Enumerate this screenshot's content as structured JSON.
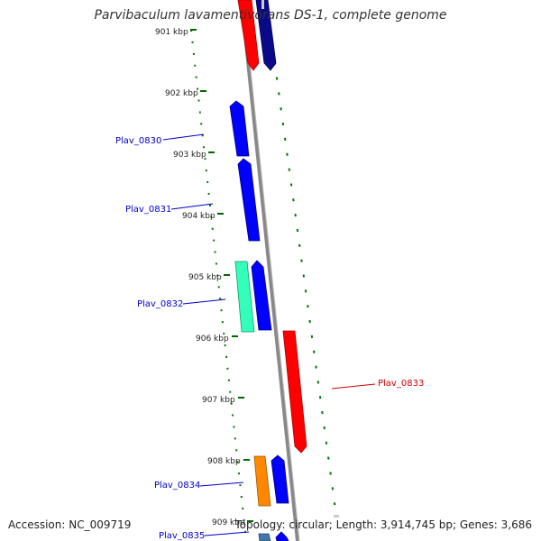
{
  "title": "Parvibaculum lavamentivorans DS-1, complete genome",
  "ruler": [
    "901 kbp",
    "902 kbp",
    "903 kbp",
    "904 kbp",
    "905 kbp",
    "906 kbp",
    "907 kbp",
    "908 kbp",
    "909 kbp"
  ],
  "genes": [
    {
      "label": "Plav_0830",
      "color": "#0000cc"
    },
    {
      "label": "Plav_0831",
      "color": "#0000cc"
    },
    {
      "label": "Plav_0832",
      "color": "#0000cc"
    },
    {
      "label": "Plav_0833",
      "color": "#cc0000"
    },
    {
      "label": "Plav_0834",
      "color": "#0000cc"
    },
    {
      "label": "Plav_0835",
      "color": "#0000cc"
    }
  ],
  "feature_colors": {
    "forward_cds": "#0000ff",
    "reverse_cds": "#ff0000",
    "rna": "#33ffbb",
    "other": "#ff8800",
    "backbone": "#888888",
    "tick": "#008800"
  },
  "footer": {
    "accession": "Accession: NC_009719",
    "stats": "Topology: circular; Length: 3,914,745 bp; Genes: 3,686"
  }
}
